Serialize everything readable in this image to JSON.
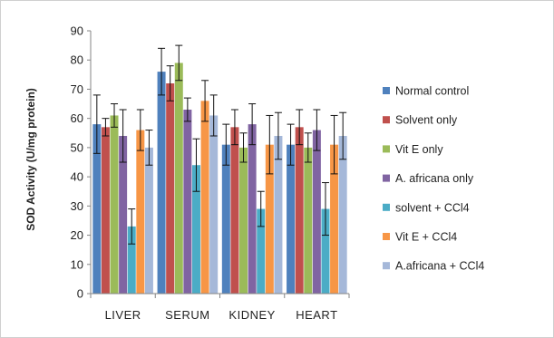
{
  "chart_data": {
    "type": "bar",
    "title": "",
    "xlabel": "",
    "ylabel": "SOD Activity (U/mg protein)",
    "ylim": [
      0,
      90
    ],
    "yticks": [
      0,
      10,
      20,
      30,
      40,
      50,
      60,
      70,
      80,
      90
    ],
    "grid": false,
    "legend_position": "right",
    "error_bars": true,
    "categories": [
      "LIVER",
      "SERUM",
      "KIDNEY",
      "HEART"
    ],
    "series": [
      {
        "name": "Normal control",
        "color": "#4f81bd",
        "values": [
          58,
          76,
          51,
          51
        ],
        "errors": [
          10,
          8,
          7,
          7
        ]
      },
      {
        "name": "Solvent only",
        "color": "#c0504d",
        "values": [
          57,
          72,
          57,
          57
        ],
        "errors": [
          3,
          6,
          6,
          6
        ]
      },
      {
        "name": "Vit E only",
        "color": "#9bbb59",
        "values": [
          61,
          79,
          50,
          50
        ],
        "errors": [
          4,
          6,
          5,
          5
        ]
      },
      {
        "name": "A. africana only",
        "color": "#8064a2",
        "values": [
          54,
          63,
          58,
          56
        ],
        "errors": [
          9,
          4,
          7,
          7
        ]
      },
      {
        "name": "solvent + CCl4",
        "color": "#4bacc6",
        "values": [
          23,
          44,
          29,
          29
        ],
        "errors": [
          6,
          9,
          6,
          9
        ]
      },
      {
        "name": "Vit E + CCl4",
        "color": "#f79646",
        "values": [
          56,
          66,
          51,
          51
        ],
        "errors": [
          7,
          7,
          10,
          10
        ]
      },
      {
        "name": "A.africana + CCl4",
        "color": "#a5b8d9",
        "values": [
          50,
          61,
          54,
          54
        ],
        "errors": [
          6,
          7,
          8,
          8
        ]
      }
    ]
  }
}
